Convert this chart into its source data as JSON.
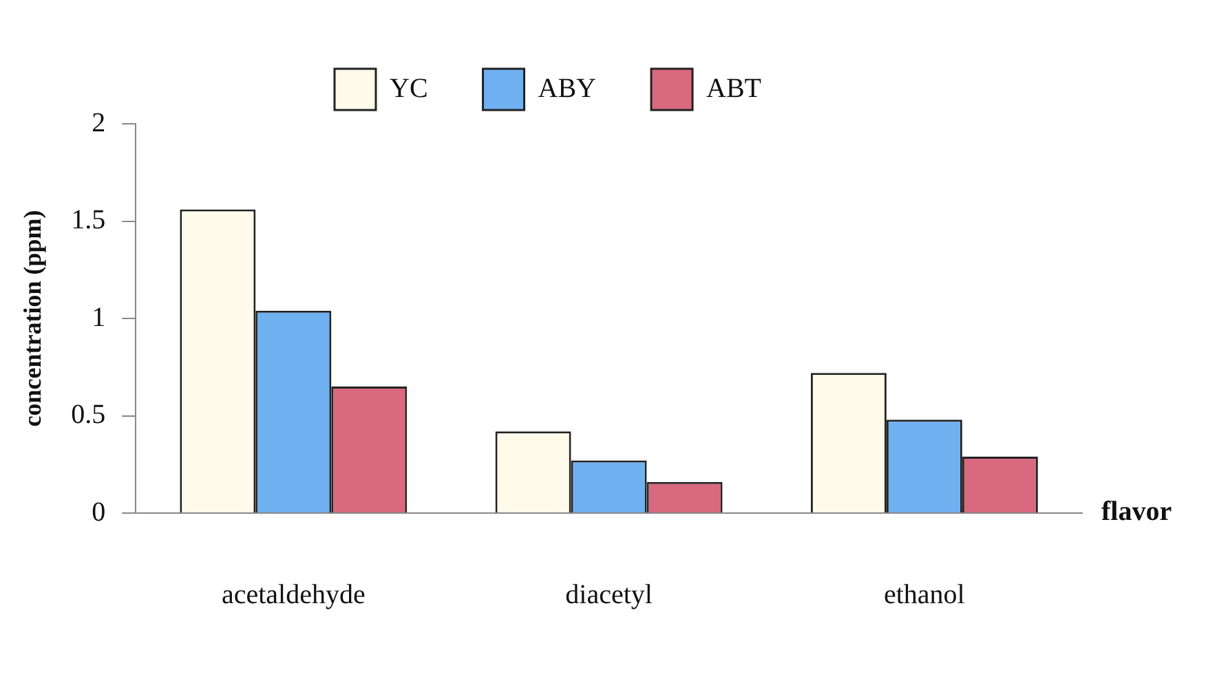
{
  "chart_data": {
    "type": "bar",
    "xlabel": "flavor",
    "ylabel": "concentration (ppm)",
    "categories": [
      "acetaldehyde",
      "diacetyl",
      "ethanol"
    ],
    "series": [
      {
        "name": "YC",
        "color": "#fffaea",
        "values": [
          1.56,
          0.42,
          0.72
        ]
      },
      {
        "name": "ABY",
        "color": "#6fb0f0",
        "values": [
          1.04,
          0.27,
          0.48
        ]
      },
      {
        "name": "ABT",
        "color": "#d9697f",
        "values": [
          0.65,
          0.16,
          0.29
        ]
      }
    ],
    "ylim": [
      0,
      2
    ],
    "yticks": [
      0,
      0.5,
      1,
      1.5,
      2
    ],
    "grid": false,
    "legend": "top"
  }
}
